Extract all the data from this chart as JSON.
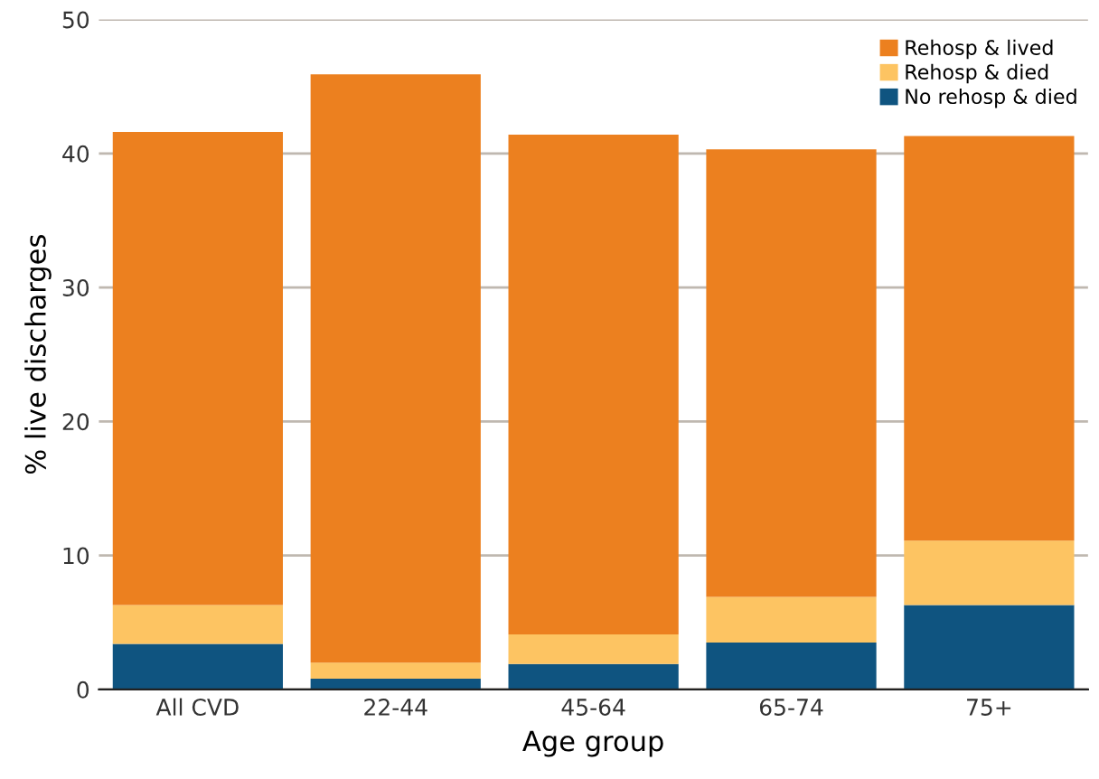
{
  "chart_data": {
    "type": "bar",
    "stacked": true,
    "xlabel": "Age group",
    "ylabel": "% live discharges",
    "categories": [
      "All CVD",
      "22-44",
      "45-64",
      "65-74",
      "75+"
    ],
    "series": [
      {
        "name": "No rehosp & died",
        "color": "#0f5480",
        "values": [
          3.4,
          0.8,
          1.9,
          3.5,
          6.3
        ]
      },
      {
        "name": "Rehosp & died",
        "color": "#fdc462",
        "values": [
          2.9,
          1.2,
          2.2,
          3.4,
          4.8
        ]
      },
      {
        "name": "Rehosp & lived",
        "color": "#ec801f",
        "values": [
          35.3,
          43.9,
          37.3,
          33.4,
          30.2
        ]
      }
    ],
    "ylim": [
      0,
      50
    ],
    "yticks": [
      0,
      10,
      20,
      30,
      40,
      50
    ],
    "grid": "y",
    "legend": "top right"
  }
}
